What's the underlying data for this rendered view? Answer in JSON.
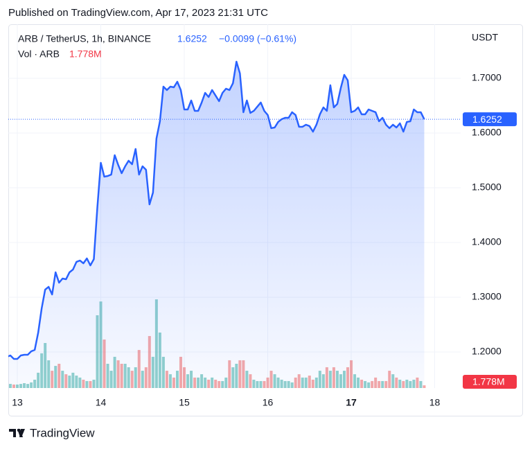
{
  "header": "Published on TradingView.com, Apr 17, 2023 21:31 UTC",
  "brand": "TradingView",
  "chart_data": {
    "type": "line",
    "y_axis_label": "USDT",
    "x": [
      12.875,
      12.9167,
      12.9583,
      13,
      13.0417,
      13.0833,
      13.125,
      13.1667,
      13.2083,
      13.25,
      13.2917,
      13.3333,
      13.375,
      13.4167,
      13.4583,
      13.5,
      13.5417,
      13.5833,
      13.625,
      13.6667,
      13.7083,
      13.75,
      13.7917,
      13.8333,
      13.875,
      13.9167,
      13.9583,
      14,
      14.0417,
      14.0833,
      14.125,
      14.1667,
      14.2083,
      14.25,
      14.2917,
      14.3333,
      14.375,
      14.4167,
      14.4583,
      14.5,
      14.5417,
      14.5833,
      14.625,
      14.6667,
      14.7083,
      14.75,
      14.7917,
      14.8333,
      14.875,
      14.9167,
      14.9583,
      15,
      15.0417,
      15.0833,
      15.125,
      15.1667,
      15.2083,
      15.25,
      15.2917,
      15.3333,
      15.375,
      15.4167,
      15.4583,
      15.5,
      15.5417,
      15.5833,
      15.625,
      15.6667,
      15.7083,
      15.75,
      15.7917,
      15.8333,
      15.875,
      15.9167,
      15.9583,
      16,
      16.0417,
      16.0833,
      16.125,
      16.1667,
      16.2083,
      16.25,
      16.2917,
      16.3333,
      16.375,
      16.4167,
      16.4583,
      16.5,
      16.5417,
      16.5833,
      16.625,
      16.6667,
      16.7083,
      16.75,
      16.7917,
      16.8333,
      16.875,
      16.9167,
      16.9583,
      17,
      17.0417,
      17.0833,
      17.125,
      17.1667,
      17.2083,
      17.25,
      17.2917,
      17.3333,
      17.375,
      17.4167,
      17.4583,
      17.5,
      17.5417,
      17.5833,
      17.625,
      17.6667,
      17.7083,
      17.75,
      17.7917,
      17.8333,
      17.875
    ],
    "xlim": [
      12.892,
      18.311
    ],
    "xticks": [
      13,
      14,
      15,
      16,
      17,
      18
    ],
    "bold_xticks": [
      17
    ],
    "ylim": [
      1.1342,
      1.7987
    ],
    "yticks": [
      {
        "value": 1.2,
        "label": "1.2000"
      },
      {
        "value": 1.3,
        "label": "1.3000"
      },
      {
        "value": 1.4,
        "label": "1.4000"
      },
      {
        "value": 1.5,
        "label": "1.5000"
      },
      {
        "value": 1.6,
        "label": "1.6000"
      },
      {
        "value": 1.7,
        "label": "1.7000"
      }
    ],
    "y2lim": [
      0,
      240
    ],
    "series": [
      {
        "name": "ARB / TetherUS, 1h, BINANCE",
        "color": "#2962ff",
        "last_label": "1.6252",
        "change_label": "−0.0099 (−0.61%)",
        "values": [
          1.1911,
          1.1937,
          1.1873,
          1.1873,
          1.1937,
          1.1949,
          1.1949,
          1.2013,
          1.2038,
          1.2354,
          1.2797,
          1.3139,
          1.319,
          1.3051,
          1.3456,
          1.3266,
          1.3342,
          1.3329,
          1.3456,
          1.3506,
          1.3646,
          1.3671,
          1.362,
          1.3709,
          1.3582,
          1.3696,
          1.4633,
          1.5456,
          1.5203,
          1.5215,
          1.5241,
          1.5595,
          1.5418,
          1.5266,
          1.5392,
          1.5494,
          1.543,
          1.5709,
          1.5241,
          1.5392,
          1.5329,
          1.4696,
          1.4911,
          1.5899,
          1.6215,
          1.6848,
          1.6785,
          1.6848,
          1.6835,
          1.6937,
          1.6785,
          1.643,
          1.643,
          1.6595,
          1.6405,
          1.6405,
          1.6557,
          1.6734,
          1.6658,
          1.6785,
          1.6684,
          1.6582,
          1.6734,
          1.681,
          1.6785,
          1.6911,
          1.7304,
          1.7089,
          1.638,
          1.6595,
          1.6367,
          1.6405,
          1.6481,
          1.6557,
          1.6405,
          1.6329,
          1.6089,
          1.6101,
          1.6203,
          1.6253,
          1.6278,
          1.6278,
          1.638,
          1.6329,
          1.6114,
          1.6114,
          1.6152,
          1.6127,
          1.6025,
          1.6152,
          1.6342,
          1.6468,
          1.6405,
          1.6873,
          1.6468,
          1.6532,
          1.6823,
          1.7063,
          1.6962,
          1.638,
          1.6405,
          1.6468,
          1.6342,
          1.6342,
          1.643,
          1.6405,
          1.638,
          1.6215,
          1.6278,
          1.6152,
          1.6089,
          1.6152,
          1.6101,
          1.6177,
          1.6025,
          1.6203,
          1.6215,
          1.643,
          1.638,
          1.638,
          1.6252
        ]
      },
      {
        "name": "Vol · ARB",
        "type": "bar",
        "axis": "y2",
        "color": "#f23645",
        "up_color": "rgba(38,166,154,0.5)",
        "down_color": "rgba(239,83,80,0.5)",
        "last_label": "1.778M",
        "values": [
          2.7,
          2.7,
          2.3,
          2.3,
          2.7,
          3.2,
          2.7,
          3.7,
          5.5,
          10.1,
          22.9,
          29.7,
          18.3,
          11.4,
          14.6,
          16,
          11.4,
          9.1,
          8.2,
          10.1,
          8.2,
          6.9,
          5.5,
          4.6,
          4.6,
          5.5,
          48,
          57.1,
          32,
          16,
          11.4,
          20.6,
          18.3,
          16,
          16,
          13.7,
          11.4,
          13.7,
          25.1,
          11.4,
          13.7,
          34.3,
          20.6,
          58.5,
          36.6,
          20.6,
          11.4,
          9.1,
          6.9,
          11.4,
          20.6,
          13.7,
          9.1,
          11.4,
          6.9,
          6.9,
          9.1,
          6.9,
          5.5,
          6.9,
          5.5,
          4.6,
          4.6,
          6.9,
          18.3,
          13.7,
          16,
          18.3,
          18.3,
          11.4,
          9.1,
          5.5,
          4.6,
          4.6,
          4.6,
          6.9,
          11.4,
          9.1,
          6.9,
          5.5,
          4.6,
          4.6,
          3.7,
          6.9,
          9.1,
          6.9,
          6.9,
          8.2,
          5.5,
          6.9,
          11.4,
          9.1,
          13.7,
          11.4,
          13.7,
          11.4,
          9.1,
          11.4,
          13.7,
          18.3,
          9.1,
          6.9,
          5.5,
          4.6,
          3.7,
          4.6,
          6.9,
          4.6,
          4.6,
          4.6,
          11.4,
          9.1,
          6.9,
          5.5,
          4.6,
          5.5,
          4.6,
          5.5,
          6.9,
          4.6,
          1.778
        ]
      }
    ]
  }
}
